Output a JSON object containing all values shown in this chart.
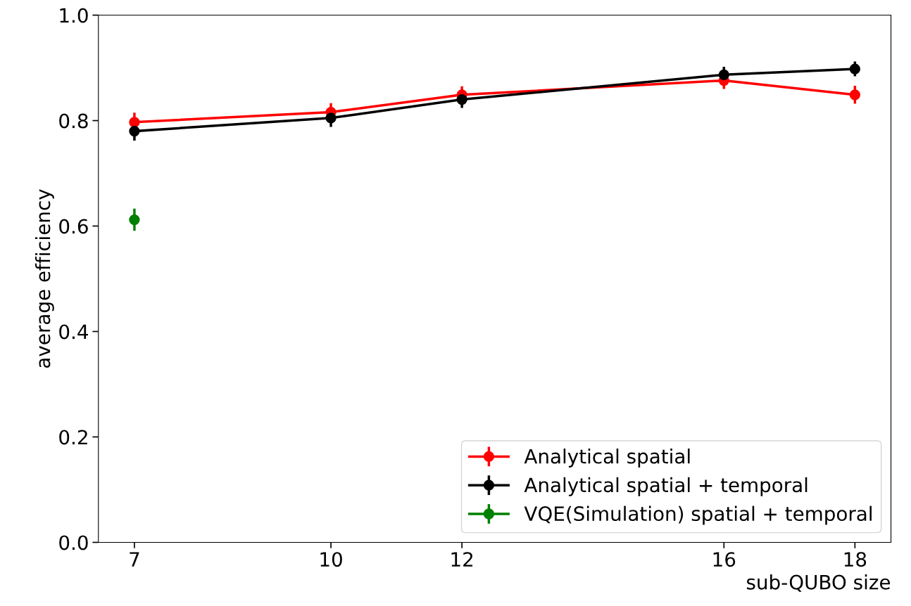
{
  "chart_data": {
    "type": "line",
    "xlabel": "sub-QUBO size",
    "ylabel": "average efficiency",
    "x": [
      7,
      10,
      12,
      16,
      18
    ],
    "series": [
      {
        "name": "Analytical spatial",
        "color": "#ff0000",
        "values": [
          0.797,
          0.816,
          0.849,
          0.876,
          0.849
        ],
        "errors": [
          0.018,
          0.017,
          0.016,
          0.016,
          0.017
        ]
      },
      {
        "name": "Analytical spatial + temporal",
        "color": "#000000",
        "values": [
          0.78,
          0.805,
          0.84,
          0.887,
          0.898
        ],
        "errors": [
          0.018,
          0.017,
          0.016,
          0.015,
          0.014
        ]
      },
      {
        "name": "VQE(Simulation) spatial + temporal",
        "color": "#008000",
        "x": [
          7
        ],
        "values": [
          0.612
        ],
        "errors": [
          0.021
        ]
      }
    ],
    "xlim": [
      6.45,
      18.55
    ],
    "xticks": [
      7,
      10,
      12,
      16,
      18
    ],
    "ylim": [
      0,
      1.0
    ],
    "yticks": [
      {
        "value": 0,
        "label": "0.0"
      },
      0.2,
      0.4,
      0.6,
      0.8,
      {
        "value": 1.0,
        "label": "1.0"
      }
    ],
    "marker": "circle",
    "line_style": "solid",
    "legend": "bottom right",
    "grid": false
  }
}
